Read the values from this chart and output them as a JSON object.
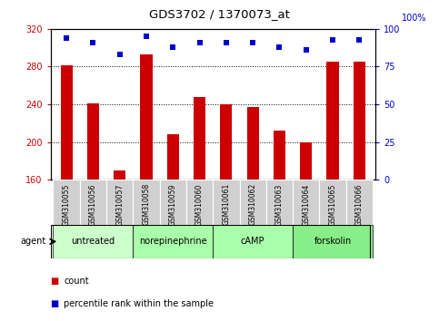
{
  "title": "GDS3702 / 1370073_at",
  "samples": [
    "GSM310055",
    "GSM310056",
    "GSM310057",
    "GSM310058",
    "GSM310059",
    "GSM310060",
    "GSM310061",
    "GSM310062",
    "GSM310063",
    "GSM310064",
    "GSM310065",
    "GSM310066"
  ],
  "counts": [
    281,
    241,
    170,
    293,
    208,
    248,
    240,
    237,
    212,
    200,
    285,
    285
  ],
  "percentile_ranks": [
    94,
    91,
    83,
    95,
    88,
    91,
    91,
    91,
    88,
    86,
    93,
    93
  ],
  "ylim_left": [
    160,
    320
  ],
  "ylim_right": [
    0,
    100
  ],
  "yticks_left": [
    160,
    200,
    240,
    280,
    320
  ],
  "yticks_right": [
    0,
    25,
    50,
    75,
    100
  ],
  "bar_color": "#cc0000",
  "dot_color": "#0000cc",
  "bg_color": "#ffffff",
  "agent_groups": [
    {
      "label": "untreated",
      "start": 0,
      "end": 3
    },
    {
      "label": "norepinephrine",
      "start": 3,
      "end": 6
    },
    {
      "label": "cAMP",
      "start": 6,
      "end": 9
    },
    {
      "label": "forskolin",
      "start": 9,
      "end": 12
    }
  ],
  "agent_group_colors": [
    "#ccffcc",
    "#aaffaa",
    "#aaffaa",
    "#88ee88"
  ],
  "bar_width": 0.45,
  "legend_count_color": "#cc0000",
  "legend_pct_color": "#0000cc",
  "legend_count_label": "count",
  "legend_pct_label": "percentile rank within the sample",
  "agent_label": "agent"
}
